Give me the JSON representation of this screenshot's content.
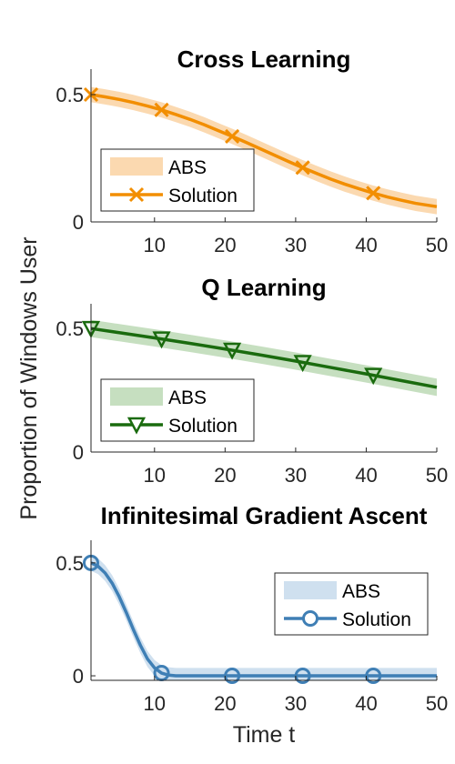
{
  "figure": {
    "ylabel": "Proportion of Windows User",
    "xlabel": "Time t"
  },
  "chart_data": [
    {
      "type": "line",
      "title": "Cross Learning",
      "color": "#f28e00",
      "band_color": "#fbd9b0",
      "marker": "x",
      "legend_position": "bottom-left",
      "legend": [
        "ABS",
        "Solution"
      ],
      "xlim": [
        1,
        50
      ],
      "ylim": [
        0,
        0.6
      ],
      "xticks": [
        10,
        20,
        30,
        40,
        50
      ],
      "yticks": [
        0,
        0.5
      ],
      "ytick_labels": [
        "0",
        "0.5"
      ],
      "x": [
        1,
        3,
        5,
        7,
        9,
        11,
        13,
        15,
        17,
        19,
        21,
        23,
        25,
        27,
        29,
        31,
        33,
        35,
        37,
        39,
        41,
        43,
        45,
        47,
        50
      ],
      "series": [
        {
          "name": "Solution",
          "values": [
            0.5,
            0.491,
            0.481,
            0.469,
            0.455,
            0.44,
            0.422,
            0.403,
            0.382,
            0.359,
            0.336,
            0.312,
            0.287,
            0.262,
            0.237,
            0.213,
            0.19,
            0.168,
            0.148,
            0.13,
            0.113,
            0.098,
            0.085,
            0.073,
            0.06
          ],
          "band_halfwidth": 0.03
        }
      ],
      "markers_x": [
        1,
        11,
        21,
        31,
        41
      ]
    },
    {
      "type": "line",
      "title": "Q Learning",
      "color": "#1a6b0e",
      "band_color": "#c6dfc0",
      "marker": "triangle-down",
      "legend_position": "bottom-left",
      "legend": [
        "ABS",
        "Solution"
      ],
      "xlim": [
        1,
        50
      ],
      "ylim": [
        0,
        0.6
      ],
      "xticks": [
        10,
        20,
        30,
        40,
        50
      ],
      "yticks": [
        0,
        0.5
      ],
      "ytick_labels": [
        "0",
        "0.5"
      ],
      "x": [
        1,
        5,
        10,
        15,
        20,
        25,
        30,
        35,
        40,
        45,
        50
      ],
      "series": [
        {
          "name": "Solution",
          "values": [
            0.5,
            0.483,
            0.462,
            0.44,
            0.417,
            0.393,
            0.368,
            0.342,
            0.316,
            0.289,
            0.262
          ],
          "band_halfwidth": 0.035
        }
      ],
      "markers_x": [
        1,
        11,
        21,
        31,
        41
      ]
    },
    {
      "type": "line",
      "title": "Infinitesimal Gradient Ascent",
      "color": "#3f7fb5",
      "band_color": "#cfe0ef",
      "marker": "circle",
      "legend_position": "top-right",
      "legend": [
        "ABS",
        "Solution"
      ],
      "xlim": [
        1,
        50
      ],
      "ylim": [
        -0.02,
        0.6
      ],
      "xticks": [
        10,
        20,
        30,
        40,
        50
      ],
      "yticks": [
        0,
        0.5
      ],
      "ytick_labels": [
        "0",
        "0.5"
      ],
      "x": [
        1,
        2,
        3,
        4,
        5,
        6,
        7,
        8,
        9,
        10,
        11,
        12,
        13,
        14,
        16,
        20,
        30,
        40,
        50
      ],
      "series": [
        {
          "name": "Solution",
          "values": [
            0.5,
            0.485,
            0.455,
            0.41,
            0.35,
            0.28,
            0.205,
            0.135,
            0.075,
            0.035,
            0.012,
            0.003,
            0.0,
            0.0,
            0.0,
            0.0,
            0.0,
            0.0,
            0.0
          ],
          "band_halfwidth": 0.035
        }
      ],
      "markers_x": [
        1,
        11,
        21,
        31,
        41
      ]
    }
  ]
}
